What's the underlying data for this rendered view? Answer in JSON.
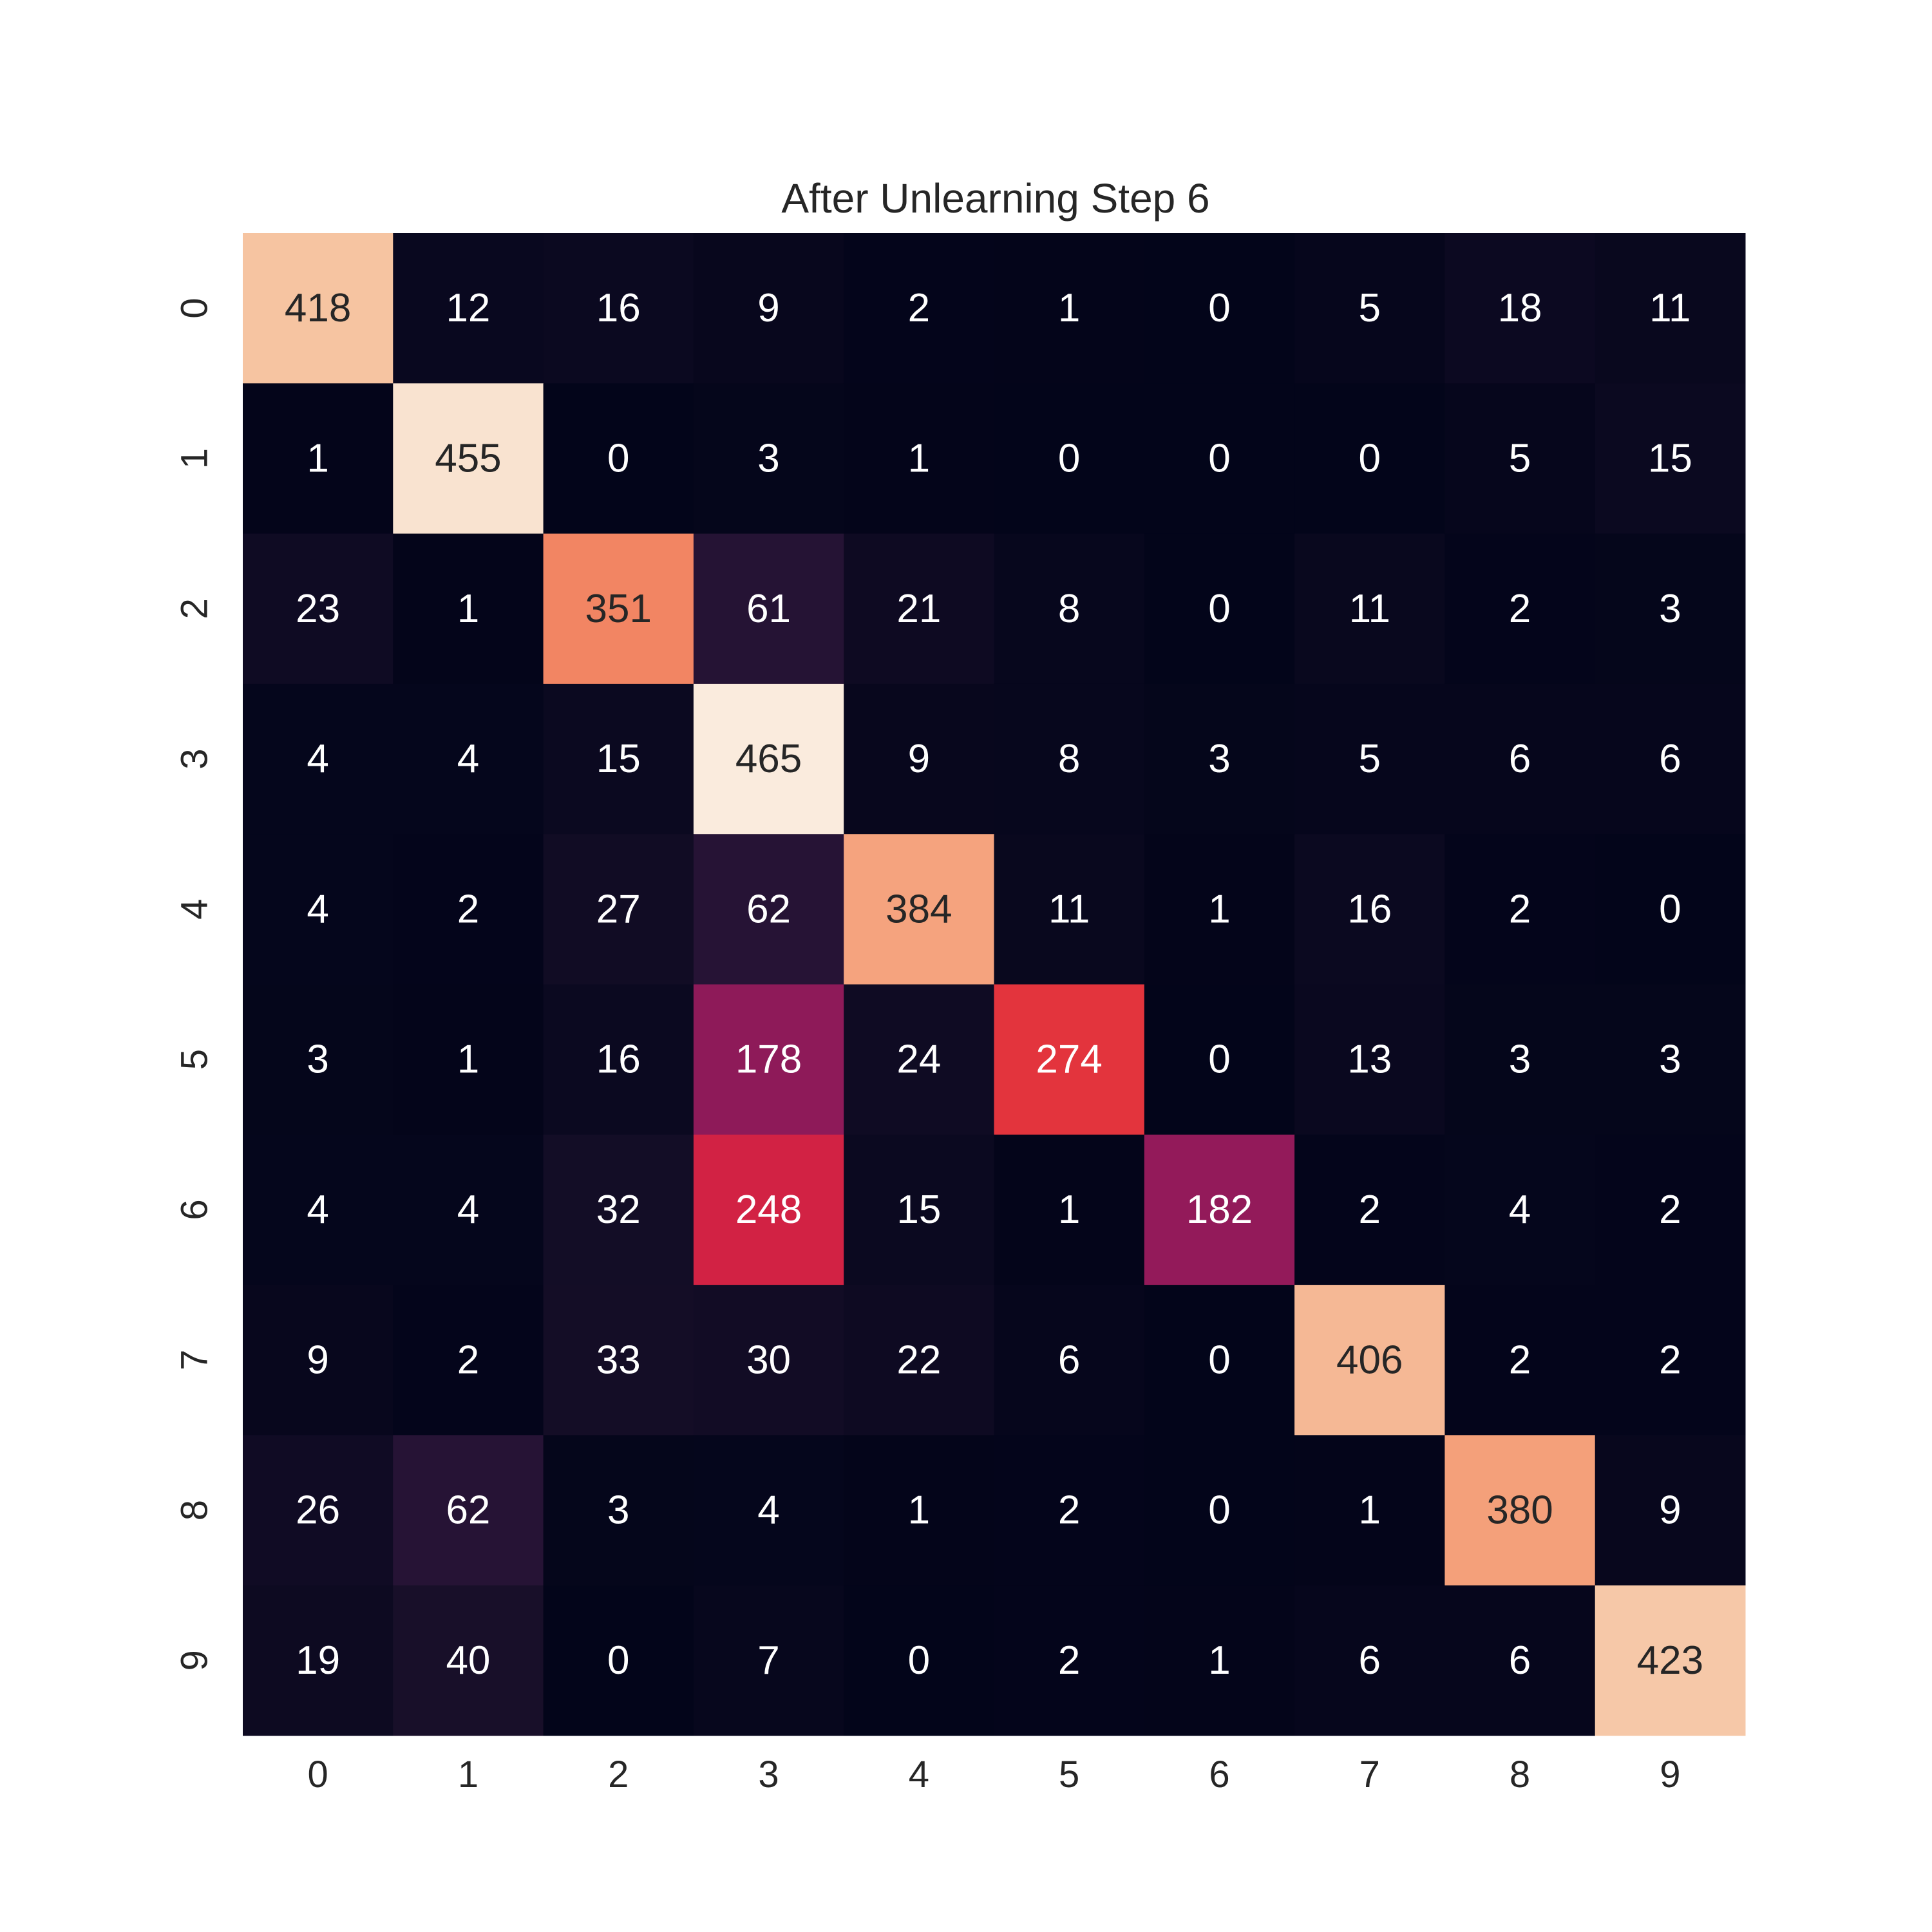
{
  "chart_data": {
    "type": "heatmap",
    "title": "After Unlearning Step 6",
    "xlabel": "",
    "ylabel": "",
    "x_tick_labels": [
      "0",
      "1",
      "2",
      "3",
      "4",
      "5",
      "6",
      "7",
      "8",
      "9"
    ],
    "y_tick_labels": [
      "0",
      "1",
      "2",
      "3",
      "4",
      "5",
      "6",
      "7",
      "8",
      "9"
    ],
    "values": [
      [
        418,
        12,
        16,
        9,
        2,
        1,
        0,
        5,
        18,
        11
      ],
      [
        1,
        455,
        0,
        3,
        1,
        0,
        0,
        0,
        5,
        15
      ],
      [
        23,
        1,
        351,
        61,
        21,
        8,
        0,
        11,
        2,
        3
      ],
      [
        4,
        4,
        15,
        465,
        9,
        8,
        3,
        5,
        6,
        6
      ],
      [
        4,
        2,
        27,
        62,
        384,
        11,
        1,
        16,
        2,
        0
      ],
      [
        3,
        1,
        16,
        178,
        24,
        274,
        0,
        13,
        3,
        3
      ],
      [
        4,
        4,
        32,
        248,
        15,
        1,
        182,
        2,
        4,
        2
      ],
      [
        9,
        2,
        33,
        30,
        22,
        6,
        0,
        406,
        2,
        2
      ],
      [
        26,
        62,
        3,
        4,
        1,
        2,
        0,
        1,
        380,
        9
      ],
      [
        19,
        40,
        0,
        7,
        0,
        2,
        1,
        6,
        6,
        423
      ]
    ],
    "color_range": [
      0,
      465
    ],
    "colormap": "rocket",
    "colorbar": false,
    "grid": false
  }
}
